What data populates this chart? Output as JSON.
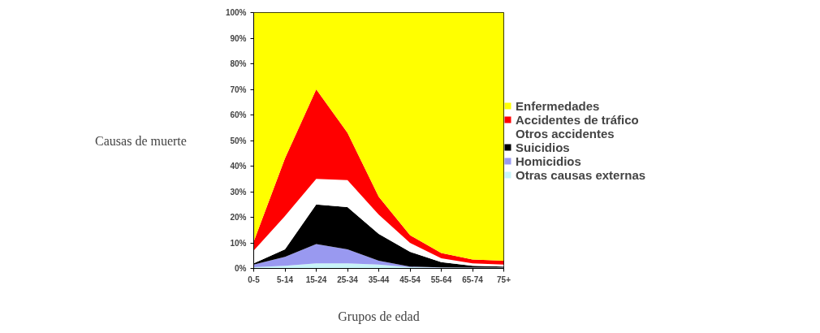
{
  "chart_data": {
    "type": "area",
    "stacked": true,
    "ylabel": "Causas de muerte",
    "xlabel": "Grupos de edad",
    "categories": [
      "0-5",
      "5-14",
      "15-24",
      "25-34",
      "35-44",
      "45-54",
      "55-64",
      "65-74",
      "75+"
    ],
    "ylim": [
      0,
      100
    ],
    "yticks": [
      {
        "value": 0,
        "label": "0%"
      },
      {
        "value": 10,
        "label": "10%"
      },
      {
        "value": 20,
        "label": "20%"
      },
      {
        "value": 30,
        "label": "30%"
      },
      {
        "value": 40,
        "label": "40%"
      },
      {
        "value": 50,
        "label": "50%"
      },
      {
        "value": 60,
        "label": "60%"
      },
      {
        "value": 70,
        "label": "70%"
      },
      {
        "value": 80,
        "label": "80%"
      },
      {
        "value": 90,
        "label": "90%"
      },
      {
        "value": 100,
        "label": "100%"
      }
    ],
    "grid": false,
    "legend": "right",
    "series": [
      {
        "name": "Otras causas externas",
        "color": "#c8f4f8",
        "values": [
          0.5,
          1,
          2,
          2,
          1.5,
          0.5,
          0.3,
          0.2,
          0.2
        ]
      },
      {
        "name": "Homicidios",
        "color": "#9999f0",
        "values": [
          1,
          3.5,
          7.5,
          5.5,
          1.5,
          0.2,
          0.1,
          0.1,
          0.1
        ]
      },
      {
        "name": "Suicidios",
        "color": "#000000",
        "values": [
          0.5,
          3,
          15.5,
          16.5,
          10.5,
          5.8,
          2.1,
          0.7,
          0.4
        ]
      },
      {
        "name": "Otros accidentes",
        "color": "#ffffff",
        "values": [
          5,
          13,
          10,
          10.5,
          7.5,
          3.5,
          1.5,
          1,
          0.8
        ]
      },
      {
        "name": "Accidentes de tráfico",
        "color": "#ff0000",
        "values": [
          3.5,
          22.5,
          35,
          18.5,
          7,
          3,
          2,
          1.5,
          1.5
        ]
      },
      {
        "name": "Enfermedades",
        "color": "#ffff00",
        "values": [
          89.5,
          57,
          30,
          47,
          72,
          87,
          94,
          96.5,
          97
        ]
      }
    ]
  }
}
